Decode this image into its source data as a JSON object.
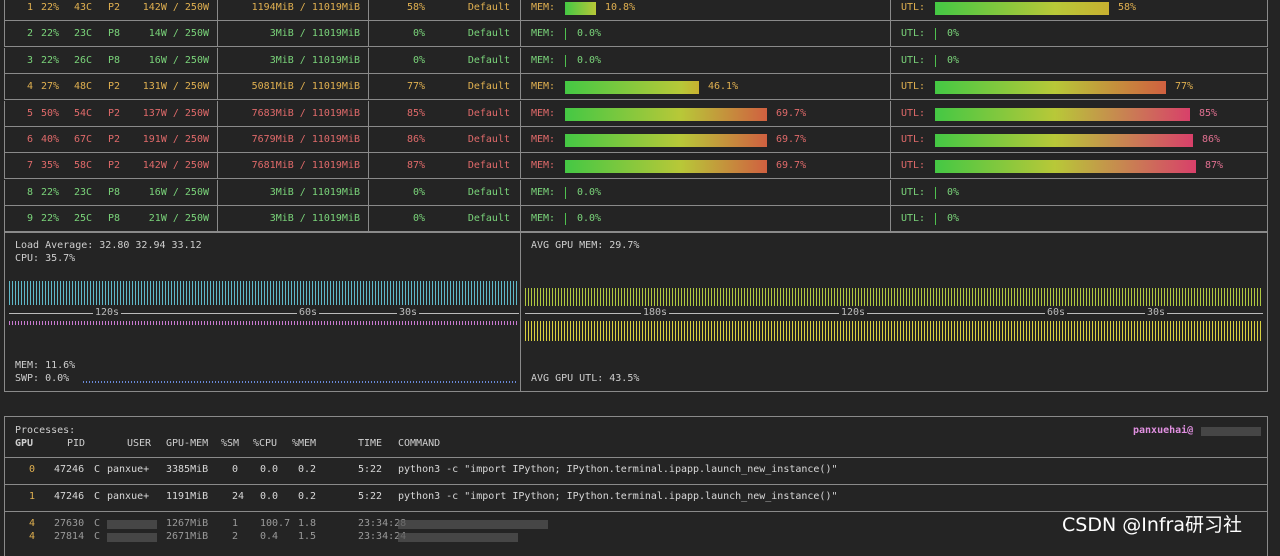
{
  "gpus": [
    {
      "id": "1",
      "fan": "22%",
      "temp": "43C",
      "perf": "P2",
      "power": "142W / 250W",
      "mem": "1194MiB / 11019MiB",
      "util": "58%",
      "mode": "Default",
      "mem_pct": "10.8%",
      "mem_frac": 0.108,
      "utl_pct": "58%",
      "utl_frac": 0.58,
      "level": "orange"
    },
    {
      "id": "2",
      "fan": "22%",
      "temp": "23C",
      "perf": "P8",
      "power": "14W / 250W",
      "mem": "3MiB / 11019MiB",
      "util": "0%",
      "mode": "Default",
      "mem_pct": "0.0%",
      "mem_frac": 0,
      "utl_pct": "0%",
      "utl_frac": 0,
      "level": "green"
    },
    {
      "id": "3",
      "fan": "22%",
      "temp": "26C",
      "perf": "P8",
      "power": "16W / 250W",
      "mem": "3MiB / 11019MiB",
      "util": "0%",
      "mode": "Default",
      "mem_pct": "0.0%",
      "mem_frac": 0,
      "utl_pct": "0%",
      "utl_frac": 0,
      "level": "green"
    },
    {
      "id": "4",
      "fan": "27%",
      "temp": "48C",
      "perf": "P2",
      "power": "131W / 250W",
      "mem": "5081MiB / 11019MiB",
      "util": "77%",
      "mode": "Default",
      "mem_pct": "46.1%",
      "mem_frac": 0.461,
      "utl_pct": "77%",
      "utl_frac": 0.77,
      "level": "orange"
    },
    {
      "id": "5",
      "fan": "50%",
      "temp": "54C",
      "perf": "P2",
      "power": "137W / 250W",
      "mem": "7683MiB / 11019MiB",
      "util": "85%",
      "mode": "Default",
      "mem_pct": "69.7%",
      "mem_frac": 0.697,
      "utl_pct": "85%",
      "utl_frac": 0.85,
      "level": "red"
    },
    {
      "id": "6",
      "fan": "40%",
      "temp": "67C",
      "perf": "P2",
      "power": "191W / 250W",
      "mem": "7679MiB / 11019MiB",
      "util": "86%",
      "mode": "Default",
      "mem_pct": "69.7%",
      "mem_frac": 0.697,
      "utl_pct": "86%",
      "utl_frac": 0.86,
      "level": "red"
    },
    {
      "id": "7",
      "fan": "35%",
      "temp": "58C",
      "perf": "P2",
      "power": "142W / 250W",
      "mem": "7681MiB / 11019MiB",
      "util": "87%",
      "mode": "Default",
      "mem_pct": "69.7%",
      "mem_frac": 0.697,
      "utl_pct": "87%",
      "utl_frac": 0.87,
      "level": "red"
    },
    {
      "id": "8",
      "fan": "22%",
      "temp": "23C",
      "perf": "P8",
      "power": "16W / 250W",
      "mem": "3MiB / 11019MiB",
      "util": "0%",
      "mode": "Default",
      "mem_pct": "0.0%",
      "mem_frac": 0,
      "utl_pct": "0%",
      "utl_frac": 0,
      "level": "green"
    },
    {
      "id": "9",
      "fan": "22%",
      "temp": "25C",
      "perf": "P8",
      "power": "21W / 250W",
      "mem": "3MiB / 11019MiB",
      "util": "0%",
      "mode": "Default",
      "mem_pct": "0.0%",
      "mem_frac": 0,
      "utl_pct": "0%",
      "utl_frac": 0,
      "level": "green"
    }
  ],
  "labels": {
    "mem": "MEM:",
    "utl": "UTL:"
  },
  "host": {
    "load_average": "Load Average: 32.80 32.94 33.12",
    "cpu": "CPU: 35.7%",
    "mem": "MEM: 11.6%",
    "swp": "SWP: 0.0%",
    "time_labels": [
      "120s",
      "60s",
      "30s"
    ]
  },
  "gpu_summary": {
    "avg_mem": "AVG GPU MEM: 29.7%",
    "avg_utl": "AVG GPU UTL: 43.5%",
    "time_labels": [
      "180s",
      "120s",
      "60s",
      "30s"
    ]
  },
  "processes": {
    "title": "Processes:",
    "user_host": "panxuehai@",
    "headers": [
      "GPU",
      "PID",
      "USER",
      "GPU-MEM",
      "%SM",
      "%CPU",
      "%MEM",
      "TIME",
      "COMMAND"
    ],
    "rows": [
      {
        "gpu": "0",
        "pid": "47246",
        "type": "C",
        "user": "panxue+",
        "gpu_mem": "3385MiB",
        "sm": "0",
        "cpu": "0.0",
        "mem": "0.2",
        "time": "5:22",
        "command": "python3 -c \"import IPython; IPython.terminal.ipapp.launch_new_instance()\""
      },
      {
        "gpu": "1",
        "pid": "47246",
        "type": "C",
        "user": "panxue+",
        "gpu_mem": "1191MiB",
        "sm": "24",
        "cpu": "0.0",
        "mem": "0.2",
        "time": "5:22",
        "command": "python3 -c \"import IPython; IPython.terminal.ipapp.launch_new_instance()\""
      },
      {
        "gpu": "4",
        "pid": "27630",
        "type": "C",
        "user": "",
        "gpu_mem": "1267MiB",
        "sm": "1",
        "cpu": "100.7",
        "mem": "1.8",
        "time": "23:34:28",
        "command": ""
      },
      {
        "gpu": "4",
        "pid": "27814",
        "type": "C",
        "user": "",
        "gpu_mem": "2671MiB",
        "sm": "2",
        "cpu": "0.4",
        "mem": "1.5",
        "time": "23:34:24",
        "command": ""
      }
    ]
  },
  "watermark": "CSDN @Infra研习社",
  "colors": {
    "green": "#7ad47a",
    "orange": "#e0b050",
    "red": "#e06a6a",
    "pink": "#e07090",
    "cpu_graph": "#5fb8c8",
    "mem_graph": "#c87ad0",
    "gpu_mem_graph": "#b0c840",
    "gpu_utl_graph": "#d8d040"
  }
}
